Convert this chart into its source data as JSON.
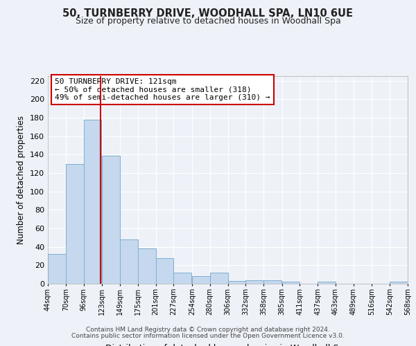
{
  "title": "50, TURNBERRY DRIVE, WOODHALL SPA, LN10 6UE",
  "subtitle": "Size of property relative to detached houses in Woodhall Spa",
  "xlabel": "Distribution of detached houses by size in Woodhall Spa",
  "ylabel": "Number of detached properties",
  "bar_color": "#c5d8ed",
  "bar_edge_color": "#7fafd0",
  "vline_x": 121,
  "vline_color": "#cc0000",
  "bin_edges": [
    44,
    70,
    96,
    123,
    149,
    175,
    201,
    227,
    254,
    280,
    306,
    332,
    358,
    385,
    411,
    437,
    463,
    489,
    516,
    542,
    568
  ],
  "bin_labels": [
    "44sqm",
    "70sqm",
    "96sqm",
    "123sqm",
    "149sqm",
    "175sqm",
    "201sqm",
    "227sqm",
    "254sqm",
    "280sqm",
    "306sqm",
    "332sqm",
    "358sqm",
    "385sqm",
    "411sqm",
    "437sqm",
    "463sqm",
    "489sqm",
    "516sqm",
    "542sqm",
    "568sqm"
  ],
  "counts": [
    32,
    130,
    178,
    139,
    48,
    38,
    28,
    12,
    8,
    12,
    3,
    4,
    4,
    2,
    0,
    2,
    0,
    0,
    0,
    2
  ],
  "ylim": [
    0,
    225
  ],
  "yticks": [
    0,
    20,
    40,
    60,
    80,
    100,
    120,
    140,
    160,
    180,
    200,
    220
  ],
  "annotation_title": "50 TURNBERRY DRIVE: 121sqm",
  "annotation_line1": "← 50% of detached houses are smaller (318)",
  "annotation_line2": "49% of semi-detached houses are larger (310) →",
  "annotation_box_color": "#ffffff",
  "annotation_box_edge": "#cc0000",
  "footer1": "Contains HM Land Registry data © Crown copyright and database right 2024.",
  "footer2": "Contains public sector information licensed under the Open Government Licence v3.0.",
  "bg_color": "#eef2f8",
  "grid_color": "#ffffff",
  "title_fontsize": 10.5,
  "subtitle_fontsize": 9.0
}
